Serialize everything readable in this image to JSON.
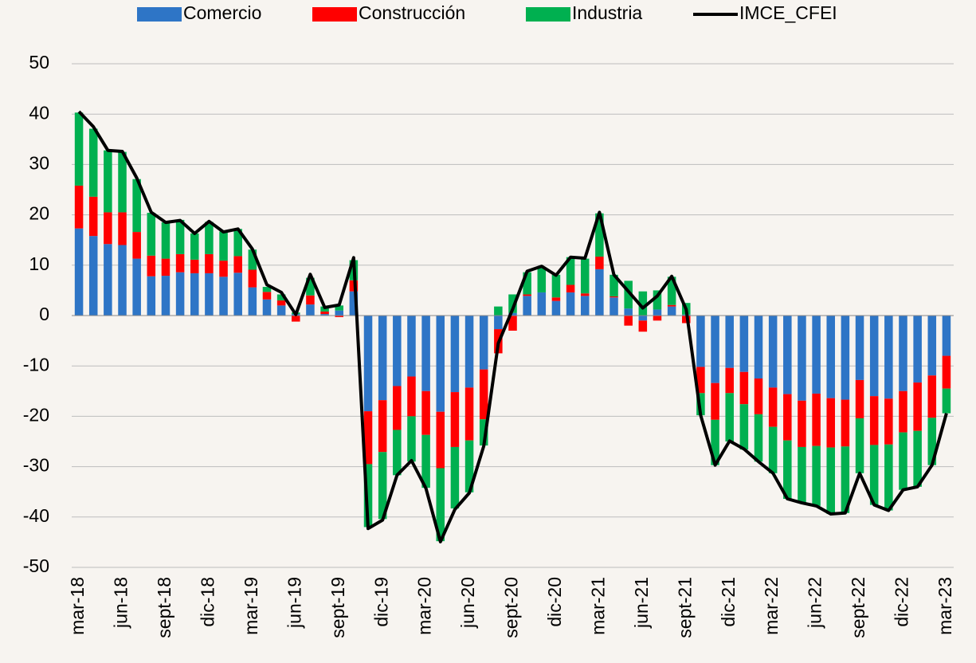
{
  "chart_data": {
    "type": "bar",
    "categories": [
      "mar-18",
      null,
      null,
      "jun-18",
      null,
      null,
      "sept-18",
      null,
      null,
      "dic-18",
      null,
      null,
      "mar-19",
      null,
      null,
      "jun-19",
      null,
      null,
      "sept-19",
      null,
      null,
      "dic-19",
      null,
      null,
      "mar-20",
      null,
      null,
      "jun-20",
      null,
      null,
      "sept-20",
      null,
      null,
      "dic-20",
      null,
      null,
      "mar-21",
      null,
      null,
      "jun-21",
      null,
      null,
      "sept-21",
      null,
      null,
      "dic-21",
      null,
      null,
      "mar-22",
      null,
      null,
      "jun-22",
      null,
      null,
      "sept-22",
      null,
      null,
      "dic-22",
      null,
      null,
      "mar-23"
    ],
    "series": [
      {
        "name": "Comercio",
        "color": "#2e75c6",
        "values": [
          17.3,
          15.8,
          14.2,
          14,
          11.3,
          7.8,
          7.9,
          8.6,
          8.4,
          8.4,
          7.7,
          8.5,
          5.6,
          3.2,
          2,
          0.3,
          2.2,
          0.3,
          1,
          4.8,
          -19,
          -16.8,
          -14,
          -12.1,
          -15,
          -19.1,
          -15.2,
          -14.3,
          -10.7,
          -2.7,
          0.5,
          3.9,
          4.6,
          2.9,
          4.6,
          3.9,
          9.2,
          3.6,
          1.4,
          -1,
          1.2,
          1.8,
          0.2,
          -10.2,
          -13.4,
          -10.4,
          -11.2,
          -12.5,
          -14.3,
          -15.6,
          -16.9,
          -15.5,
          -16.4,
          -16.7,
          -12.8,
          -16,
          -16.5,
          -15,
          -13.3,
          -11.9,
          -8
        ]
      },
      {
        "name": "Construcción",
        "color": "#ff0000",
        "values": [
          8.5,
          7.8,
          6.3,
          6.5,
          5.3,
          4.1,
          3.4,
          3.6,
          2.7,
          3.8,
          3.2,
          3.3,
          3.5,
          1.5,
          1,
          -1.2,
          1.8,
          0.5,
          -0.3,
          2.2,
          -10.5,
          -10.3,
          -8.7,
          -7.9,
          -8.7,
          -11.2,
          -10.9,
          -10.5,
          -9.9,
          -4.8,
          -3,
          0.3,
          0,
          0.7,
          1.5,
          0.5,
          2.5,
          0.2,
          -2,
          -2.2,
          -1,
          0.3,
          -1.5,
          -5.2,
          -7.3,
          -5,
          -6.4,
          -7.1,
          -7.8,
          -9.2,
          -9.2,
          -10.4,
          -9.8,
          -9.3,
          -7.6,
          -9.7,
          -9.1,
          -8.2,
          -9.6,
          -8.4,
          -6.5
        ]
      },
      {
        "name": "Industria",
        "color": "#00b050",
        "values": [
          14.5,
          13.5,
          12.3,
          12,
          10.5,
          8.5,
          7.2,
          6.8,
          5.2,
          6.4,
          5.8,
          5.4,
          4,
          1,
          1.2,
          0.3,
          3.5,
          1,
          1,
          4,
          -12.5,
          -13.3,
          -9,
          -9,
          -10.5,
          -14.5,
          -12.2,
          -10.3,
          -5.2,
          1.8,
          3.7,
          4.4,
          5,
          4.5,
          5.5,
          6.9,
          8.6,
          4.3,
          5.5,
          4.8,
          3.8,
          5.6,
          2.3,
          -4.4,
          -9,
          -9.6,
          -9,
          -9.4,
          -9.2,
          -11.6,
          -11.1,
          -11.9,
          -13.2,
          -13.2,
          -10.9,
          -11.9,
          -13.1,
          -11.4,
          -11.1,
          -9.4,
          -4.9
        ]
      },
      {
        "name": "IMCE_CFEI",
        "type": "line",
        "color": "#000000",
        "values": [
          40.5,
          37.5,
          32.8,
          32.6,
          27.3,
          20.5,
          18.5,
          18.9,
          16.3,
          18.7,
          16.6,
          17.2,
          13.2,
          6.1,
          4.6,
          0.2,
          8.2,
          1.6,
          2.1,
          11.5,
          -42.3,
          -40.6,
          -31.7,
          -28.8,
          -34.3,
          -44.9,
          -38.5,
          -35.2,
          -25.9,
          -5.5,
          1.3,
          8.8,
          9.8,
          8,
          11.6,
          11.4,
          20.5,
          8.1,
          4.8,
          1.5,
          3.9,
          7.8,
          1.2,
          -19.8,
          -29.7,
          -24.9,
          -26.5,
          -29,
          -31.3,
          -36.4,
          -37.2,
          -37.8,
          -39.4,
          -39.2,
          -31.3,
          -37.6,
          -38.7,
          -34.6,
          -34,
          -29.7,
          -19.4
        ]
      }
    ],
    "ylim": [
      -50,
      50
    ],
    "yticks": [
      -50,
      -40,
      -30,
      -20,
      -10,
      0,
      10,
      20,
      30,
      40,
      50
    ],
    "grid": true,
    "legend": "top"
  }
}
